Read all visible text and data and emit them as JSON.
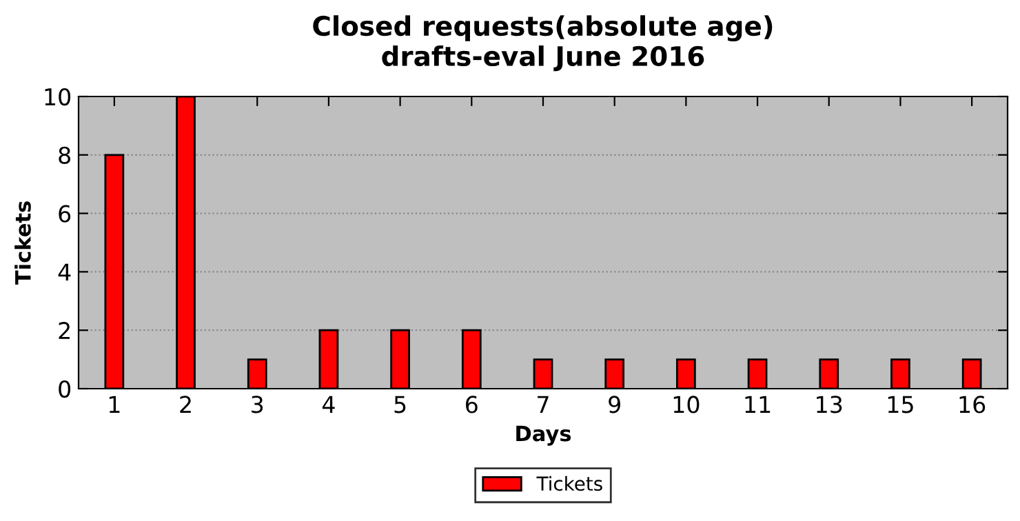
{
  "chart_data": {
    "type": "bar",
    "title": "Closed requests(absolute age)\ndrafts-eval June 2016",
    "xlabel": "Days",
    "ylabel": "Tickets",
    "categories": [
      "1",
      "2",
      "3",
      "4",
      "5",
      "6",
      "7",
      "9",
      "10",
      "11",
      "13",
      "15",
      "16"
    ],
    "series": [
      {
        "name": "Tickets",
        "color": "#ff0000",
        "values": [
          8,
          10,
          1,
          2,
          2,
          2,
          1,
          1,
          1,
          1,
          1,
          1,
          1
        ]
      }
    ],
    "ylim": [
      0,
      10
    ],
    "yticks": [
      0,
      2,
      4,
      6,
      8,
      10
    ],
    "grid": "y",
    "legend": "bottom"
  }
}
